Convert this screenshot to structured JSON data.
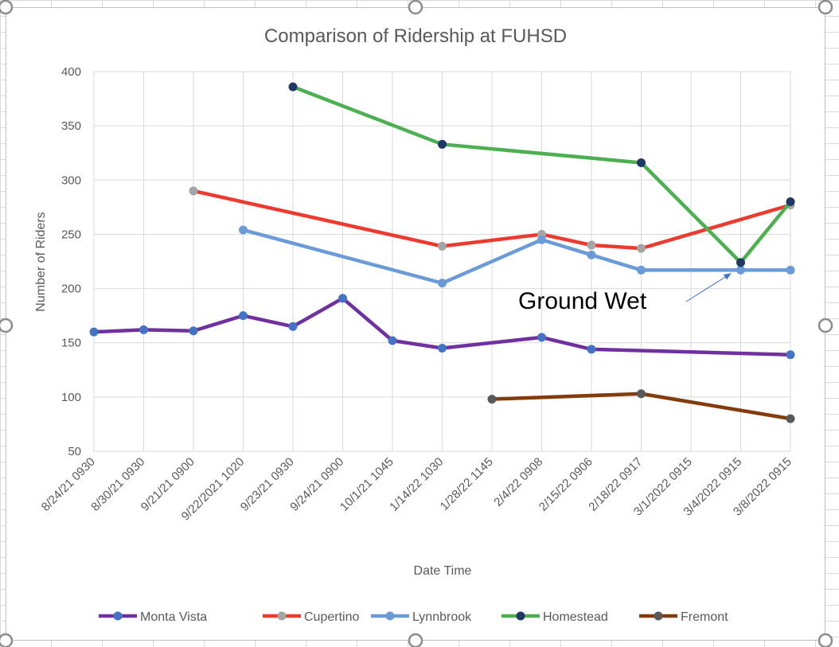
{
  "chart_data": {
    "type": "line",
    "title": "Comparison of Ridership at FUHSD",
    "xlabel": "Date Time",
    "ylabel": "Number of Riders",
    "ylim": [
      50,
      400
    ],
    "yticks": [
      50,
      100,
      150,
      200,
      250,
      300,
      350,
      400
    ],
    "grid": true,
    "legend": "bottom",
    "categories": [
      "8/24/21 0930",
      "8/30/21 0930",
      "9/21/21 0900",
      "9/22/2021 1020",
      "9/23/21 0930",
      "9/24/21 0900",
      "10/1/21 1045",
      "1/14/22 1030",
      "1/28/22 1145",
      "2/4/22 0908",
      "2/15/22 0906",
      "2/18/22 0917",
      "3/1/2022 0915",
      "3/4/2022 0915",
      "3/8/2022 0915"
    ],
    "series": [
      {
        "name": "Monta Vista",
        "line_color": "#7030a0",
        "marker_color": "#4472c4",
        "values": [
          160,
          162,
          161,
          175,
          165,
          191,
          152,
          145,
          null,
          155,
          144,
          null,
          null,
          null,
          139
        ]
      },
      {
        "name": "Cupertino",
        "line_color": "#ee3a2e",
        "marker_color": "#a5a5a5",
        "values": [
          null,
          null,
          290,
          null,
          null,
          null,
          null,
          239,
          null,
          250,
          240,
          237,
          null,
          null,
          277
        ]
      },
      {
        "name": "Lynnbrook",
        "line_color": "#6a9bd8",
        "marker_color": "#6a9bd8",
        "values": [
          null,
          null,
          null,
          254,
          null,
          null,
          null,
          205,
          null,
          245,
          231,
          217,
          null,
          217,
          217
        ]
      },
      {
        "name": "Homestead",
        "line_color": "#4caf50",
        "marker_color": "#203864",
        "values": [
          null,
          null,
          null,
          null,
          386,
          null,
          null,
          333,
          null,
          null,
          null,
          316,
          null,
          224,
          280
        ]
      },
      {
        "name": "Fremont",
        "line_color": "#843c0c",
        "marker_color": "#595959",
        "values": [
          null,
          null,
          null,
          null,
          null,
          null,
          null,
          null,
          98,
          null,
          null,
          103,
          null,
          null,
          80
        ]
      }
    ],
    "annotations": [
      {
        "text": "Ground Wet",
        "arrow_to": {
          "x": "3/4/2022 0915",
          "y": 217
        }
      }
    ]
  }
}
